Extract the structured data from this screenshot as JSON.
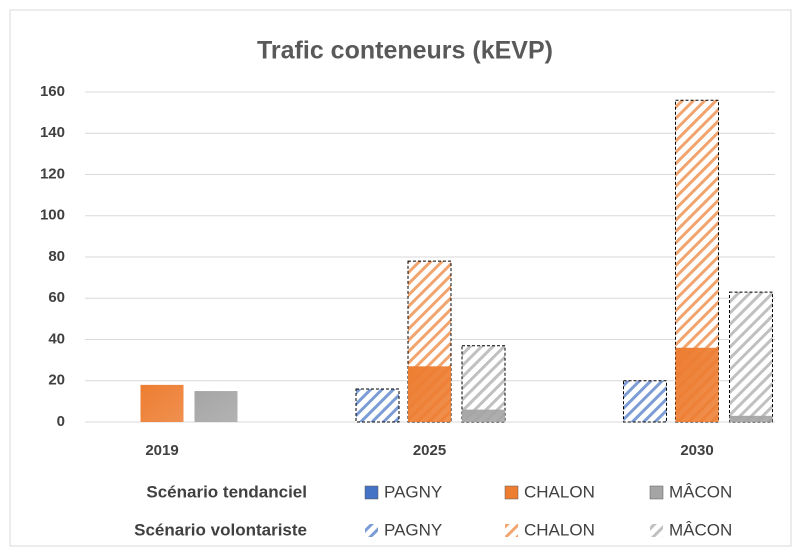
{
  "chart_data": {
    "type": "bar",
    "title": "Trafic conteneurs (kEVP)",
    "categories": [
      "2019",
      "2025",
      "2030"
    ],
    "scenarios": [
      "Scénario tendanciel",
      "Scénario volontariste"
    ],
    "series": [
      {
        "name": "PAGNY",
        "color": "#4472c4",
        "scenario": 0,
        "hatched": false,
        "values": [
          null,
          null,
          null
        ]
      },
      {
        "name": "CHALON",
        "color": "#ed7d31",
        "scenario": 0,
        "hatched": false,
        "values": [
          18,
          27,
          36
        ]
      },
      {
        "name": "MÂCON",
        "color": "#a5a5a5",
        "scenario": 0,
        "hatched": false,
        "values": [
          15,
          6,
          3
        ]
      },
      {
        "name": "PAGNY",
        "color": "#4472c4",
        "scenario": 1,
        "hatched": true,
        "values": [
          null,
          16,
          20
        ]
      },
      {
        "name": "CHALON",
        "color": "#ed7d31",
        "scenario": 1,
        "hatched": true,
        "values": [
          null,
          78,
          156
        ]
      },
      {
        "name": "MÂCON",
        "color": "#a5a5a5",
        "scenario": 1,
        "hatched": true,
        "values": [
          null,
          37,
          63
        ]
      }
    ],
    "ylim": [
      0,
      160
    ],
    "yticks": [
      0,
      20,
      40,
      60,
      80,
      100,
      120,
      140,
      160
    ],
    "grid": true
  }
}
